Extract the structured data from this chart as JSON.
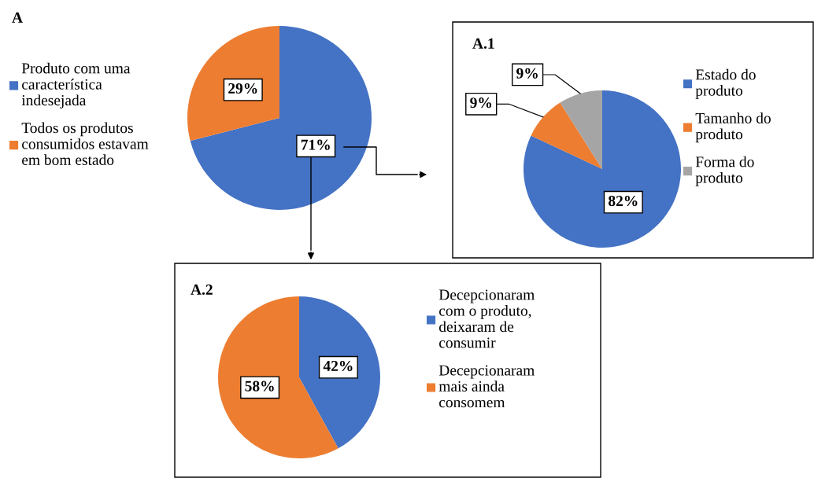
{
  "chart_data": [
    {
      "type": "pie",
      "title": "A",
      "categories": [
        "Produto com uma\ncaracterística\nindesejada",
        "Todos os produtos\nconsumidos estavam\nem bom estado"
      ],
      "values": [
        71,
        29
      ],
      "colors": [
        "#4472c4",
        "#ed7d31"
      ],
      "value_labels": [
        "71%",
        "29%"
      ],
      "legend": "left"
    },
    {
      "type": "pie",
      "title": "A.1",
      "categories": [
        "Estado do\nproduto",
        "Tamanho do\nproduto",
        "Forma do\nproduto"
      ],
      "values": [
        82,
        9,
        9
      ],
      "colors": [
        "#4472c4",
        "#ed7d31",
        "#a5a5a5"
      ],
      "value_labels": [
        "82%",
        "9%",
        "9%"
      ],
      "legend": "right"
    },
    {
      "type": "pie",
      "title": "A.2",
      "categories": [
        "Decepcionaram\ncom o produto,\ndeixaram de\nconsumir",
        "Decepcionaram\nmais ainda\nconsomem"
      ],
      "values": [
        42,
        58
      ],
      "colors": [
        "#4472c4",
        "#ed7d31"
      ],
      "value_labels": [
        "42%",
        "58%"
      ],
      "legend": "right"
    }
  ]
}
